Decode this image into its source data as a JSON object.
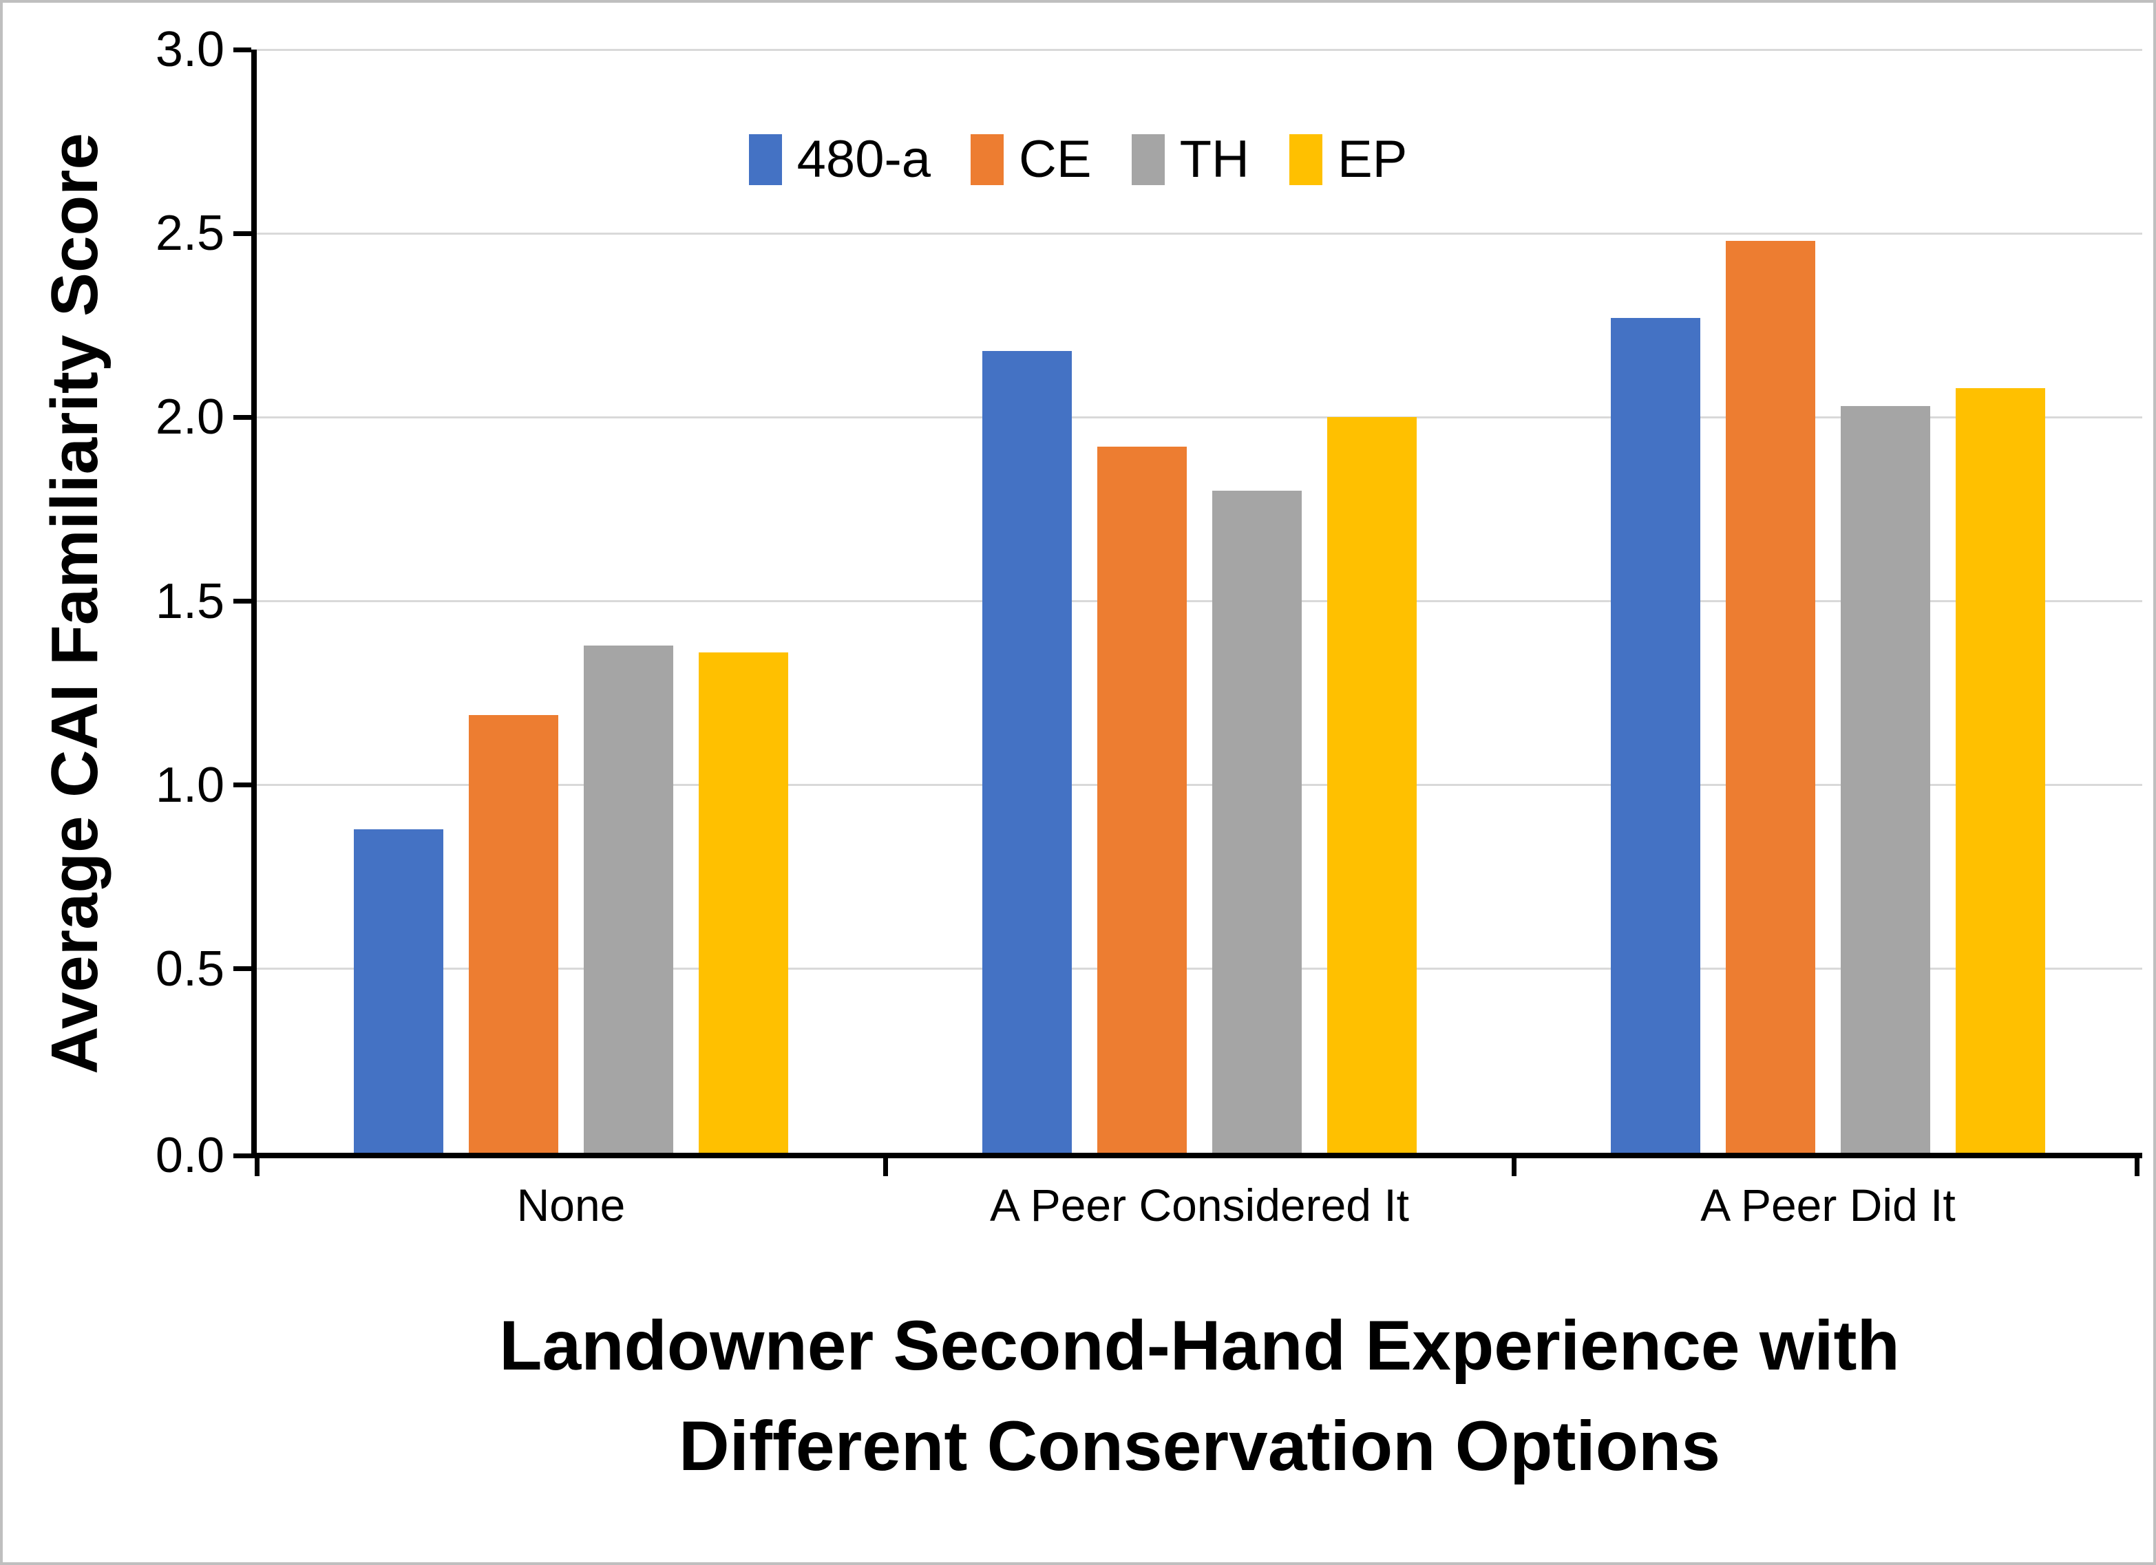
{
  "chart_data": {
    "type": "bar",
    "title": "",
    "ylabel": "Average CAI Familiarity Score",
    "xlabel": "Landowner Second-Hand Experience with Different Conservation Options",
    "xlabel_lines": [
      "Landowner Second-Hand Experience with",
      "Different Conservation Options"
    ],
    "categories": [
      "None",
      "A Peer Considered It",
      "A Peer Did It"
    ],
    "series": [
      {
        "name": "480-a",
        "color": "#4472C4",
        "values": [
          0.88,
          2.18,
          2.27
        ]
      },
      {
        "name": "CE",
        "color": "#ED7D31",
        "values": [
          1.19,
          1.92,
          2.48
        ]
      },
      {
        "name": "TH",
        "color": "#A5A5A5",
        "values": [
          1.38,
          1.8,
          2.03
        ]
      },
      {
        "name": "EP",
        "color": "#FFC000",
        "values": [
          1.36,
          2.0,
          2.08
        ]
      }
    ],
    "ylim": [
      0,
      3
    ],
    "ytick_step": 0.5,
    "yticks": [
      "0.0",
      "0.5",
      "1.0",
      "1.5",
      "2.0",
      "2.5",
      "3.0"
    ],
    "grid": "horizontal",
    "legend_position": "top-center",
    "colors": {
      "axis": "#000000",
      "gridline": "#D9D9D9",
      "canvas_border": "#BFBFBF",
      "background": "#FFFFFF"
    }
  }
}
